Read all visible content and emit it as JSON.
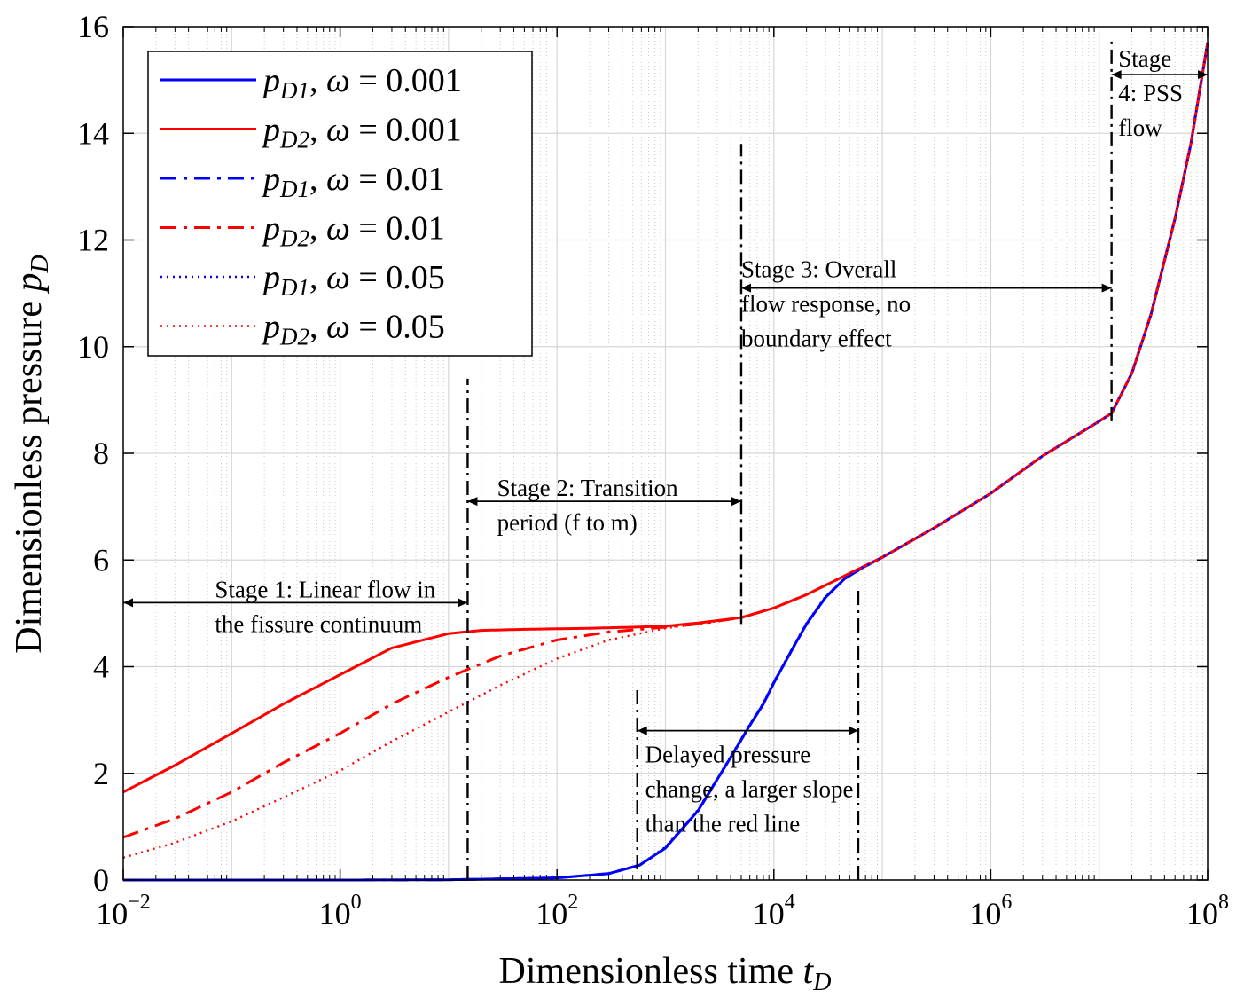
{
  "chart_data": {
    "type": "line",
    "x_scale": "log",
    "xlim": [
      0.01,
      100000000
    ],
    "ylim": [
      0,
      16
    ],
    "grid": true,
    "legend_placement": "top-left",
    "xlabel": {
      "main": "Dimensionless time ",
      "var": "t",
      "sub": "D"
    },
    "ylabel": {
      "main": "Dimensionless pressure ",
      "var": "p",
      "sub": "D"
    },
    "x_ticks": [
      {
        "value": 0.01,
        "base": "10",
        "exp": "−2"
      },
      {
        "value": 1,
        "base": "10",
        "exp": "0"
      },
      {
        "value": 100,
        "base": "10",
        "exp": "2"
      },
      {
        "value": 10000,
        "base": "10",
        "exp": "4"
      },
      {
        "value": 1000000,
        "base": "10",
        "exp": "6"
      },
      {
        "value": 100000000,
        "base": "10",
        "exp": "8"
      }
    ],
    "y_ticks": [
      {
        "value": 0,
        "label": "0"
      },
      {
        "value": 2,
        "label": "2"
      },
      {
        "value": 4,
        "label": "4"
      },
      {
        "value": 6,
        "label": "6"
      },
      {
        "value": 8,
        "label": "8"
      },
      {
        "value": 10,
        "label": "10"
      },
      {
        "value": 12,
        "label": "12"
      },
      {
        "value": 14,
        "label": "14"
      },
      {
        "value": 16,
        "label": "16"
      }
    ],
    "series": [
      {
        "name": "pD1, ω = 0.001",
        "var": "p",
        "sub": "D1",
        "omega": "0.001",
        "color": "#0000ff",
        "dash": "solid",
        "x": [
          0.01,
          1,
          10,
          100,
          300,
          580,
          1000,
          2000,
          4000,
          6000,
          8000,
          10000,
          15000,
          20000,
          30000,
          45000,
          65000,
          100000,
          300000,
          1000000,
          3000000,
          10000000,
          13000000,
          20000000,
          30000000,
          50000000,
          70000000,
          100000000
        ],
        "y": [
          0,
          0,
          0.005,
          0.04,
          0.12,
          0.28,
          0.6,
          1.3,
          2.3,
          2.9,
          3.3,
          3.7,
          4.35,
          4.8,
          5.3,
          5.65,
          5.85,
          6.05,
          6.6,
          7.25,
          7.95,
          8.6,
          8.75,
          9.5,
          10.6,
          12.4,
          13.8,
          15.7
        ]
      },
      {
        "name": "pD2, ω = 0.001",
        "var": "p",
        "sub": "D2",
        "omega": "0.001",
        "color": "#ff0000",
        "dash": "solid",
        "x": [
          0.01,
          0.03,
          0.1,
          0.3,
          1,
          3,
          10,
          20,
          50,
          100,
          200,
          500,
          1000,
          2000,
          5000,
          10000,
          20000,
          50000,
          100000,
          300000,
          1000000,
          3000000,
          10000000,
          13000000,
          20000000,
          30000000,
          50000000,
          70000000,
          100000000
        ],
        "y": [
          1.65,
          2.15,
          2.75,
          3.3,
          3.85,
          4.35,
          4.62,
          4.68,
          4.7,
          4.71,
          4.72,
          4.74,
          4.76,
          4.82,
          4.92,
          5.1,
          5.35,
          5.75,
          6.05,
          6.6,
          7.25,
          7.95,
          8.6,
          8.75,
          9.5,
          10.6,
          12.4,
          13.8,
          15.7
        ]
      },
      {
        "name": "pD1, ω = 0.01",
        "var": "p",
        "sub": "D1",
        "omega": "0.01",
        "color": "#0000ff",
        "dash": "dashdot",
        "x": [
          0.01,
          1,
          10,
          100,
          300,
          580,
          1000,
          2000,
          4000,
          6000,
          8000,
          10000,
          15000,
          20000,
          30000,
          45000,
          65000,
          100000,
          300000,
          1000000,
          3000000,
          10000000,
          13000000,
          20000000,
          30000000,
          50000000,
          70000000,
          100000000
        ],
        "y": [
          0,
          0,
          0.005,
          0.04,
          0.12,
          0.28,
          0.6,
          1.3,
          2.3,
          2.9,
          3.3,
          3.7,
          4.35,
          4.8,
          5.3,
          5.65,
          5.85,
          6.05,
          6.6,
          7.25,
          7.95,
          8.6,
          8.75,
          9.5,
          10.6,
          12.4,
          13.8,
          15.7
        ]
      },
      {
        "name": "pD2, ω = 0.01",
        "var": "p",
        "sub": "D2",
        "omega": "0.01",
        "color": "#ff0000",
        "dash": "dashdot",
        "x": [
          0.01,
          0.03,
          0.1,
          0.3,
          1,
          3,
          10,
          30,
          100,
          300,
          1000,
          2000,
          5000,
          10000,
          20000,
          50000,
          100000,
          300000,
          1000000,
          3000000,
          10000000,
          13000000,
          20000000,
          30000000,
          50000000,
          70000000,
          100000000
        ],
        "y": [
          0.8,
          1.15,
          1.65,
          2.2,
          2.75,
          3.3,
          3.8,
          4.2,
          4.5,
          4.65,
          4.74,
          4.8,
          4.92,
          5.1,
          5.35,
          5.75,
          6.05,
          6.6,
          7.25,
          7.95,
          8.6,
          8.75,
          9.5,
          10.6,
          12.4,
          13.8,
          15.7
        ]
      },
      {
        "name": "pD1, ω = 0.05",
        "var": "p",
        "sub": "D1",
        "omega": "0.05",
        "color": "#0000ff",
        "dash": "dotted",
        "x": [
          0.01,
          1,
          10,
          100,
          300,
          580,
          1000,
          2000,
          4000,
          6000,
          8000,
          10000,
          15000,
          20000,
          30000,
          45000,
          65000,
          100000,
          300000,
          1000000,
          3000000,
          10000000,
          13000000,
          20000000,
          30000000,
          50000000,
          70000000,
          100000000
        ],
        "y": [
          0,
          0,
          0.005,
          0.04,
          0.12,
          0.28,
          0.62,
          1.32,
          2.32,
          2.92,
          3.32,
          3.72,
          4.37,
          4.82,
          5.32,
          5.66,
          5.86,
          6.05,
          6.6,
          7.25,
          7.95,
          8.6,
          8.75,
          9.5,
          10.6,
          12.4,
          13.8,
          15.7
        ]
      },
      {
        "name": "pD2, ω = 0.05",
        "var": "p",
        "sub": "D2",
        "omega": "0.05",
        "color": "#ff0000",
        "dash": "dotted",
        "x": [
          0.01,
          0.03,
          0.1,
          0.3,
          1,
          3,
          10,
          30,
          100,
          300,
          1000,
          2000,
          5000,
          10000,
          20000,
          50000,
          100000,
          300000,
          1000000,
          3000000,
          10000000,
          13000000,
          20000000,
          30000000,
          50000000,
          70000000,
          100000000
        ],
        "y": [
          0.42,
          0.7,
          1.1,
          1.55,
          2.05,
          2.6,
          3.15,
          3.65,
          4.15,
          4.5,
          4.72,
          4.8,
          4.92,
          5.1,
          5.35,
          5.75,
          6.05,
          6.6,
          7.25,
          7.95,
          8.6,
          8.75,
          9.5,
          10.6,
          12.4,
          13.8,
          15.7
        ]
      }
    ],
    "stage_markers": [
      {
        "x": 15,
        "y_from": 0,
        "y_to": 9.4
      },
      {
        "x": 5000,
        "y_from": 4.8,
        "y_to": 13.8
      },
      {
        "x": 550,
        "y_from": 0.2,
        "y_to": 3.6
      },
      {
        "x": 60000,
        "y_from": 0,
        "y_to": 5.5
      },
      {
        "x": 13000000,
        "y_from": 8.6,
        "y_to": 15.8
      }
    ],
    "arrows": [
      {
        "x1": 0.01,
        "x2": 15,
        "y": 5.2
      },
      {
        "x1": 15,
        "x2": 5000,
        "y": 7.1
      },
      {
        "x1": 5000,
        "x2": 13000000,
        "y": 11.1
      },
      {
        "x1": 13000000,
        "x2": 100000000,
        "y": 15.1
      },
      {
        "x1": 550,
        "x2": 60000,
        "y": 2.8
      }
    ],
    "annotations": [
      {
        "lines": [
          "Stage 1: Linear flow in",
          "the fissure continuum"
        ],
        "x": 0.07,
        "y": 5.3
      },
      {
        "lines": [
          "Stage 2: Transition",
          "period (f to m)"
        ],
        "x": 28,
        "y": 7.2
      },
      {
        "lines": [
          "Stage 3: Overall",
          "flow response, no",
          "boundary effect"
        ],
        "x": 5000,
        "y": 11.3
      },
      {
        "lines": [
          "Stage",
          "4: PSS",
          "flow"
        ],
        "x": 15000000,
        "y": 15.25
      },
      {
        "lines": [
          "Delayed pressure",
          "change, a larger slope",
          "than the red line"
        ],
        "x": 650,
        "y": 2.2
      }
    ]
  }
}
